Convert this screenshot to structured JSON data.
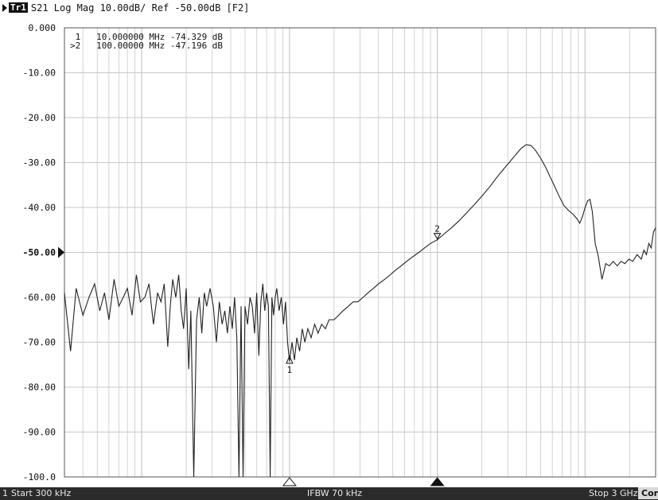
{
  "header": {
    "trace_label": "Tr1",
    "trace_desc": "S21 Log Mag 10.00dB/ Ref -50.00dB [F2]"
  },
  "footer": {
    "channel": "1",
    "start": "Start 300 kHz",
    "ifbw": "IFBW 70 kHz",
    "stop": "Stop 3 GHz",
    "cor": "Cor"
  },
  "colors": {
    "trace": "#222222",
    "grid": "#c8c8c8",
    "footer_bg": "#2b2b2b"
  },
  "chart_data": {
    "type": "line",
    "x_scale": "log",
    "x_unit": "Hz",
    "xlim": [
      300000,
      3000000000
    ],
    "ylim": [
      -100,
      0
    ],
    "reference_level": -50,
    "y_ticks": [
      "0.000",
      "-10.00",
      "-20.00",
      "-30.00",
      "-40.00",
      "-50.00",
      "-60.00",
      "-70.00",
      "-80.00",
      "-90.00",
      "-100.0"
    ],
    "y_tick_values": [
      0,
      -10,
      -20,
      -30,
      -40,
      -50,
      -60,
      -70,
      -80,
      -90,
      -100
    ],
    "markers": [
      {
        "id": "1",
        "label": "1",
        "readout": " 1   10.000000 MHz -74.329 dB",
        "freq": 10000000,
        "value": -74.329,
        "active": false
      },
      {
        "id": "2",
        "label": "2",
        "readout": ">2   100.00000 MHz -47.196 dB",
        "freq": 100000000,
        "value": -47.196,
        "active": true
      }
    ],
    "series": [
      {
        "points": [
          [
            300000,
            -59
          ],
          [
            330000,
            -72
          ],
          [
            360000,
            -58
          ],
          [
            400000,
            -64
          ],
          [
            440000,
            -60
          ],
          [
            480000,
            -57
          ],
          [
            520000,
            -63
          ],
          [
            560000,
            -59
          ],
          [
            600000,
            -65
          ],
          [
            650000,
            -56
          ],
          [
            700000,
            -62
          ],
          [
            750000,
            -60
          ],
          [
            800000,
            -58
          ],
          [
            860000,
            -64
          ],
          [
            920000,
            -55
          ],
          [
            980000,
            -61
          ],
          [
            1050000,
            -60
          ],
          [
            1120000,
            -57
          ],
          [
            1200000,
            -66
          ],
          [
            1280000,
            -59
          ],
          [
            1350000,
            -61
          ],
          [
            1420000,
            -57
          ],
          [
            1500000,
            -71
          ],
          [
            1560000,
            -62
          ],
          [
            1620000,
            -56
          ],
          [
            1700000,
            -60
          ],
          [
            1780000,
            -55
          ],
          [
            1850000,
            -63
          ],
          [
            1920000,
            -67
          ],
          [
            2000000,
            -58
          ],
          [
            2080000,
            -76
          ],
          [
            2150000,
            -63
          ],
          [
            2250000,
            -100
          ],
          [
            2350000,
            -65
          ],
          [
            2450000,
            -60
          ],
          [
            2550000,
            -68
          ],
          [
            2650000,
            -59
          ],
          [
            2750000,
            -62
          ],
          [
            2900000,
            -58
          ],
          [
            3050000,
            -62
          ],
          [
            3200000,
            -70
          ],
          [
            3350000,
            -61
          ],
          [
            3500000,
            -66
          ],
          [
            3650000,
            -63
          ],
          [
            3800000,
            -68
          ],
          [
            3950000,
            -62
          ],
          [
            4100000,
            -67
          ],
          [
            4250000,
            -60
          ],
          [
            4400000,
            -69
          ],
          [
            4550000,
            -100
          ],
          [
            4700000,
            -62
          ],
          [
            4850000,
            -100
          ],
          [
            5000000,
            -62
          ],
          [
            5200000,
            -66
          ],
          [
            5400000,
            -60
          ],
          [
            5600000,
            -62
          ],
          [
            5800000,
            -68
          ],
          [
            6000000,
            -59
          ],
          [
            6200000,
            -73
          ],
          [
            6400000,
            -61
          ],
          [
            6600000,
            -57
          ],
          [
            6800000,
            -63
          ],
          [
            7000000,
            -59
          ],
          [
            7200000,
            -62
          ],
          [
            7400000,
            -100
          ],
          [
            7600000,
            -60
          ],
          [
            7800000,
            -64
          ],
          [
            8000000,
            -60
          ],
          [
            8200000,
            -58
          ],
          [
            8500000,
            -63
          ],
          [
            8800000,
            -60
          ],
          [
            9100000,
            -66
          ],
          [
            9400000,
            -61
          ],
          [
            9700000,
            -70
          ],
          [
            10000000,
            -74.3
          ],
          [
            10400000,
            -70
          ],
          [
            10800000,
            -74
          ],
          [
            11200000,
            -69
          ],
          [
            11700000,
            -72
          ],
          [
            12200000,
            -67
          ],
          [
            12700000,
            -70
          ],
          [
            13300000,
            -67
          ],
          [
            14000000,
            -69
          ],
          [
            14800000,
            -66
          ],
          [
            15600000,
            -68
          ],
          [
            16500000,
            -66
          ],
          [
            17500000,
            -67
          ],
          [
            18500000,
            -65
          ],
          [
            20000000,
            -65
          ],
          [
            21500000,
            -64
          ],
          [
            23000000,
            -63
          ],
          [
            25000000,
            -62
          ],
          [
            27000000,
            -61
          ],
          [
            29000000,
            -61
          ],
          [
            31500000,
            -60
          ],
          [
            34000000,
            -59
          ],
          [
            37000000,
            -58
          ],
          [
            40000000,
            -57
          ],
          [
            44000000,
            -56
          ],
          [
            48000000,
            -55
          ],
          [
            52000000,
            -54
          ],
          [
            57000000,
            -53
          ],
          [
            62000000,
            -52
          ],
          [
            68000000,
            -51
          ],
          [
            75000000,
            -50
          ],
          [
            82000000,
            -49
          ],
          [
            90000000,
            -48
          ],
          [
            100000000,
            -47.2
          ],
          [
            112000000,
            -45.8
          ],
          [
            125000000,
            -44.5
          ],
          [
            140000000,
            -43
          ],
          [
            160000000,
            -41
          ],
          [
            180000000,
            -39.2
          ],
          [
            200000000,
            -37.5
          ],
          [
            225000000,
            -35.5
          ],
          [
            250000000,
            -33.5
          ],
          [
            280000000,
            -31.5
          ],
          [
            310000000,
            -29.8
          ],
          [
            340000000,
            -28.2
          ],
          [
            370000000,
            -26.8
          ],
          [
            400000000,
            -26
          ],
          [
            430000000,
            -26.2
          ],
          [
            460000000,
            -27.2
          ],
          [
            500000000,
            -29
          ],
          [
            540000000,
            -31
          ],
          [
            580000000,
            -33.2
          ],
          [
            620000000,
            -35.2
          ],
          [
            670000000,
            -37.6
          ],
          [
            720000000,
            -39.6
          ],
          [
            780000000,
            -40.8
          ],
          [
            830000000,
            -41.5
          ],
          [
            880000000,
            -42.5
          ],
          [
            920000000,
            -43.5
          ],
          [
            960000000,
            -42
          ],
          [
            1000000000,
            -40
          ],
          [
            1040000000,
            -38.5
          ],
          [
            1080000000,
            -38.2
          ],
          [
            1120000000,
            -41
          ],
          [
            1170000000,
            -48
          ],
          [
            1230000000,
            -51
          ],
          [
            1300000000,
            -56
          ],
          [
            1380000000,
            -52.5
          ],
          [
            1460000000,
            -53
          ],
          [
            1550000000,
            -52
          ],
          [
            1650000000,
            -53
          ],
          [
            1750000000,
            -52
          ],
          [
            1860000000,
            -52.5
          ],
          [
            1980000000,
            -51.5
          ],
          [
            2100000000,
            -52
          ],
          [
            2250000000,
            -50.5
          ],
          [
            2400000000,
            -51.5
          ],
          [
            2500000000,
            -49.5
          ],
          [
            2600000000,
            -50.5
          ],
          [
            2700000000,
            -48
          ],
          [
            2800000000,
            -49
          ],
          [
            2900000000,
            -45.5
          ],
          [
            3000000000,
            -44.5
          ]
        ]
      }
    ]
  }
}
